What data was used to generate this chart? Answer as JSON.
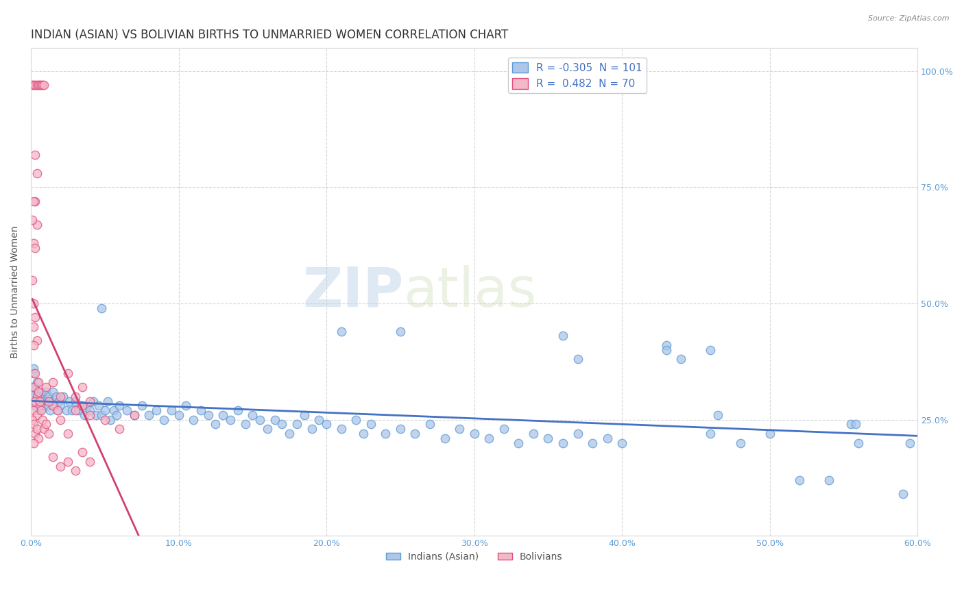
{
  "title": "INDIAN (ASIAN) VS BOLIVIAN BIRTHS TO UNMARRIED WOMEN CORRELATION CHART",
  "source": "Source: ZipAtlas.com",
  "ylabel": "Births to Unmarried Women",
  "watermark_zip": "ZIP",
  "watermark_atlas": "atlas",
  "xlim": [
    0.0,
    0.6
  ],
  "ylim": [
    0.0,
    1.05
  ],
  "xtick_values": [
    0.0,
    0.1,
    0.2,
    0.3,
    0.4,
    0.5,
    0.6
  ],
  "xtick_labels": [
    "0.0%",
    "10.0%",
    "20.0%",
    "30.0%",
    "40.0%",
    "50.0%",
    "60.0%"
  ],
  "ytick_values": [
    0.0,
    0.25,
    0.5,
    0.75,
    1.0
  ],
  "ytick_right_labels": [
    "",
    "25.0%",
    "50.0%",
    "75.0%",
    "100.0%"
  ],
  "indian_color_face": "#aec6e8",
  "indian_color_edge": "#5b9bd5",
  "bolivian_color_face": "#f4b8c8",
  "bolivian_color_edge": "#e05080",
  "indian_line_color": "#4472c4",
  "bolivian_line_color": "#d04070",
  "grid_color": "#cccccc",
  "background_color": "#ffffff",
  "title_fontsize": 12,
  "axis_label_fontsize": 10,
  "tick_fontsize": 9,
  "legend_fontsize": 11,
  "source_fontsize": 8,
  "indian_points": [
    [
      0.001,
      0.32
    ],
    [
      0.002,
      0.3
    ],
    [
      0.002,
      0.35
    ],
    [
      0.003,
      0.28
    ],
    [
      0.003,
      0.32
    ],
    [
      0.004,
      0.3
    ],
    [
      0.004,
      0.33
    ],
    [
      0.005,
      0.29
    ],
    [
      0.005,
      0.31
    ],
    [
      0.006,
      0.3
    ],
    [
      0.006,
      0.27
    ],
    [
      0.007,
      0.31
    ],
    [
      0.007,
      0.28
    ],
    [
      0.008,
      0.3
    ],
    [
      0.009,
      0.29
    ],
    [
      0.01,
      0.31
    ],
    [
      0.011,
      0.28
    ],
    [
      0.012,
      0.3
    ],
    [
      0.013,
      0.27
    ],
    [
      0.014,
      0.29
    ],
    [
      0.015,
      0.31
    ],
    [
      0.016,
      0.28
    ],
    [
      0.017,
      0.3
    ],
    [
      0.018,
      0.27
    ],
    [
      0.019,
      0.29
    ],
    [
      0.02,
      0.28
    ],
    [
      0.022,
      0.3
    ],
    [
      0.024,
      0.27
    ],
    [
      0.026,
      0.29
    ],
    [
      0.028,
      0.27
    ],
    [
      0.03,
      0.29
    ],
    [
      0.032,
      0.27
    ],
    [
      0.034,
      0.28
    ],
    [
      0.036,
      0.26
    ],
    [
      0.038,
      0.28
    ],
    [
      0.04,
      0.27
    ],
    [
      0.042,
      0.29
    ],
    [
      0.044,
      0.26
    ],
    [
      0.046,
      0.28
    ],
    [
      0.048,
      0.49
    ],
    [
      0.048,
      0.26
    ],
    [
      0.05,
      0.27
    ],
    [
      0.052,
      0.29
    ],
    [
      0.054,
      0.25
    ],
    [
      0.056,
      0.27
    ],
    [
      0.058,
      0.26
    ],
    [
      0.06,
      0.28
    ],
    [
      0.065,
      0.27
    ],
    [
      0.07,
      0.26
    ],
    [
      0.075,
      0.28
    ],
    [
      0.08,
      0.26
    ],
    [
      0.085,
      0.27
    ],
    [
      0.09,
      0.25
    ],
    [
      0.095,
      0.27
    ],
    [
      0.1,
      0.26
    ],
    [
      0.105,
      0.28
    ],
    [
      0.11,
      0.25
    ],
    [
      0.115,
      0.27
    ],
    [
      0.12,
      0.26
    ],
    [
      0.125,
      0.24
    ],
    [
      0.13,
      0.26
    ],
    [
      0.135,
      0.25
    ],
    [
      0.14,
      0.27
    ],
    [
      0.145,
      0.24
    ],
    [
      0.15,
      0.26
    ],
    [
      0.155,
      0.25
    ],
    [
      0.16,
      0.23
    ],
    [
      0.165,
      0.25
    ],
    [
      0.17,
      0.24
    ],
    [
      0.175,
      0.22
    ],
    [
      0.18,
      0.24
    ],
    [
      0.185,
      0.26
    ],
    [
      0.19,
      0.23
    ],
    [
      0.195,
      0.25
    ],
    [
      0.2,
      0.24
    ],
    [
      0.21,
      0.44
    ],
    [
      0.21,
      0.23
    ],
    [
      0.22,
      0.25
    ],
    [
      0.225,
      0.22
    ],
    [
      0.23,
      0.24
    ],
    [
      0.24,
      0.22
    ],
    [
      0.25,
      0.44
    ],
    [
      0.25,
      0.23
    ],
    [
      0.26,
      0.22
    ],
    [
      0.27,
      0.24
    ],
    [
      0.28,
      0.21
    ],
    [
      0.29,
      0.23
    ],
    [
      0.3,
      0.22
    ],
    [
      0.31,
      0.21
    ],
    [
      0.32,
      0.23
    ],
    [
      0.33,
      0.2
    ],
    [
      0.34,
      0.22
    ],
    [
      0.35,
      0.21
    ],
    [
      0.36,
      0.43
    ],
    [
      0.36,
      0.2
    ],
    [
      0.37,
      0.38
    ],
    [
      0.37,
      0.22
    ],
    [
      0.38,
      0.2
    ],
    [
      0.39,
      0.21
    ],
    [
      0.4,
      0.2
    ],
    [
      0.43,
      0.41
    ],
    [
      0.43,
      0.4
    ],
    [
      0.44,
      0.38
    ],
    [
      0.46,
      0.4
    ],
    [
      0.46,
      0.22
    ],
    [
      0.465,
      0.26
    ],
    [
      0.48,
      0.2
    ],
    [
      0.5,
      0.22
    ],
    [
      0.52,
      0.12
    ],
    [
      0.54,
      0.12
    ],
    [
      0.555,
      0.24
    ],
    [
      0.558,
      0.24
    ],
    [
      0.56,
      0.2
    ],
    [
      0.59,
      0.09
    ],
    [
      0.595,
      0.2
    ],
    [
      0.002,
      0.36
    ]
  ],
  "bolivian_points": [
    [
      0.001,
      0.97
    ],
    [
      0.002,
      0.97
    ],
    [
      0.003,
      0.97
    ],
    [
      0.004,
      0.97
    ],
    [
      0.005,
      0.97
    ],
    [
      0.006,
      0.97
    ],
    [
      0.007,
      0.97
    ],
    [
      0.008,
      0.97
    ],
    [
      0.009,
      0.97
    ],
    [
      0.003,
      0.82
    ],
    [
      0.003,
      0.72
    ],
    [
      0.004,
      0.78
    ],
    [
      0.004,
      0.67
    ],
    [
      0.001,
      0.68
    ],
    [
      0.002,
      0.72
    ],
    [
      0.002,
      0.63
    ],
    [
      0.001,
      0.55
    ],
    [
      0.003,
      0.47
    ],
    [
      0.002,
      0.45
    ],
    [
      0.004,
      0.42
    ],
    [
      0.002,
      0.41
    ],
    [
      0.003,
      0.62
    ],
    [
      0.002,
      0.5
    ],
    [
      0.002,
      0.32
    ],
    [
      0.003,
      0.35
    ],
    [
      0.004,
      0.3
    ],
    [
      0.005,
      0.33
    ],
    [
      0.006,
      0.28
    ],
    [
      0.002,
      0.27
    ],
    [
      0.003,
      0.29
    ],
    [
      0.004,
      0.26
    ],
    [
      0.005,
      0.31
    ],
    [
      0.001,
      0.25
    ],
    [
      0.002,
      0.24
    ],
    [
      0.003,
      0.22
    ],
    [
      0.004,
      0.23
    ],
    [
      0.005,
      0.21
    ],
    [
      0.002,
      0.2
    ],
    [
      0.006,
      0.29
    ],
    [
      0.007,
      0.27
    ],
    [
      0.008,
      0.25
    ],
    [
      0.009,
      0.23
    ],
    [
      0.01,
      0.24
    ],
    [
      0.012,
      0.22
    ],
    [
      0.015,
      0.28
    ],
    [
      0.018,
      0.27
    ],
    [
      0.02,
      0.25
    ],
    [
      0.025,
      0.22
    ],
    [
      0.015,
      0.17
    ],
    [
      0.02,
      0.15
    ],
    [
      0.025,
      0.16
    ],
    [
      0.03,
      0.14
    ],
    [
      0.035,
      0.18
    ],
    [
      0.04,
      0.16
    ],
    [
      0.01,
      0.32
    ],
    [
      0.012,
      0.29
    ],
    [
      0.015,
      0.33
    ],
    [
      0.02,
      0.3
    ],
    [
      0.025,
      0.35
    ],
    [
      0.03,
      0.27
    ],
    [
      0.035,
      0.32
    ],
    [
      0.04,
      0.29
    ],
    [
      0.05,
      0.25
    ],
    [
      0.06,
      0.23
    ],
    [
      0.07,
      0.26
    ],
    [
      0.03,
      0.3
    ],
    [
      0.035,
      0.28
    ],
    [
      0.04,
      0.26
    ]
  ]
}
